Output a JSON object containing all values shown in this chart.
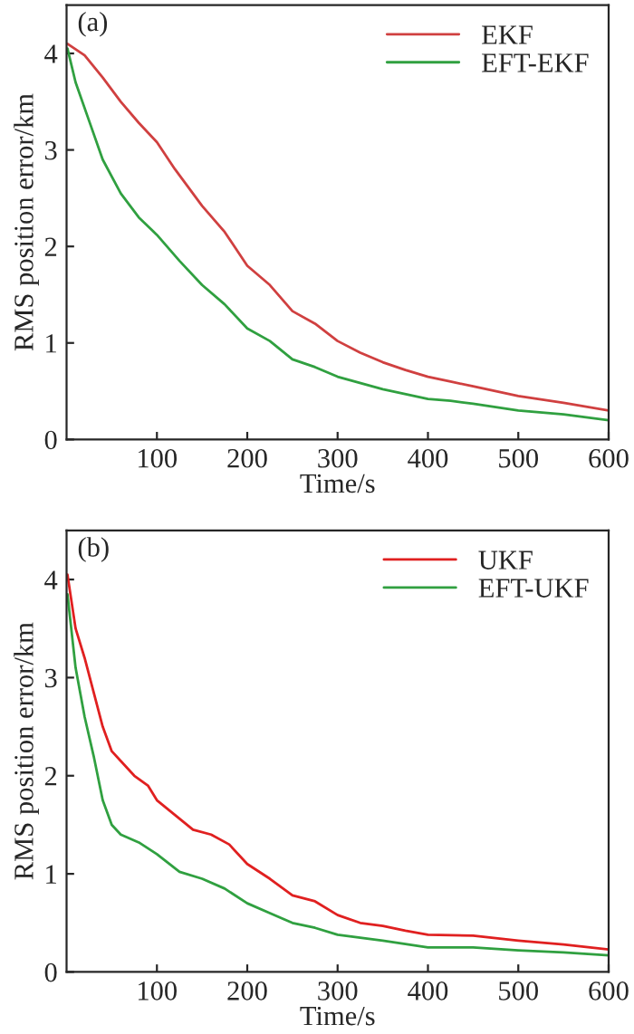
{
  "chart_data": [
    {
      "type": "line",
      "annotations": [
        "(a)"
      ],
      "xlabel": "Time/s",
      "ylabel": "RMS position error/km",
      "xlim": [
        0,
        600
      ],
      "ylim": [
        0,
        4.5
      ],
      "xticks": [
        100,
        200,
        300,
        400,
        500,
        600
      ],
      "yticks": [
        0,
        1,
        2,
        3,
        4
      ],
      "legend": "top right",
      "grid": false,
      "series": [
        {
          "name": "EKF",
          "color": "#d04040",
          "x": [
            1,
            20,
            40,
            60,
            80,
            100,
            120,
            150,
            175,
            200,
            225,
            250,
            275,
            300,
            325,
            350,
            375,
            400,
            425,
            450,
            500,
            550,
            600
          ],
          "values": [
            4.1,
            3.98,
            3.75,
            3.5,
            3.28,
            3.08,
            2.8,
            2.42,
            2.15,
            1.8,
            1.6,
            1.33,
            1.2,
            1.02,
            0.9,
            0.8,
            0.72,
            0.65,
            0.6,
            0.55,
            0.45,
            0.38,
            0.3
          ]
        },
        {
          "name": "EFT-EKF",
          "color": "#30a040",
          "x": [
            1,
            10,
            25,
            40,
            60,
            80,
            100,
            125,
            150,
            175,
            200,
            225,
            250,
            275,
            300,
            350,
            400,
            425,
            450,
            500,
            550,
            600
          ],
          "values": [
            4.05,
            3.7,
            3.3,
            2.9,
            2.55,
            2.3,
            2.12,
            1.85,
            1.6,
            1.4,
            1.15,
            1.02,
            0.83,
            0.75,
            0.65,
            0.52,
            0.42,
            0.4,
            0.37,
            0.3,
            0.26,
            0.2
          ]
        }
      ]
    },
    {
      "type": "line",
      "annotations": [
        "(b)"
      ],
      "xlabel": "Time/s",
      "ylabel": "RMS position error/km",
      "xlim": [
        0,
        600
      ],
      "ylim": [
        0,
        4.5
      ],
      "xticks": [
        100,
        200,
        300,
        400,
        500,
        600
      ],
      "yticks": [
        0,
        1,
        2,
        3,
        4
      ],
      "legend": "top right",
      "grid": false,
      "series": [
        {
          "name": "UKF",
          "color": "#e02020",
          "x": [
            1,
            10,
            20,
            30,
            40,
            50,
            60,
            75,
            90,
            100,
            120,
            140,
            160,
            180,
            200,
            225,
            250,
            275,
            300,
            325,
            350,
            375,
            400,
            450,
            500,
            550,
            600
          ],
          "values": [
            4.05,
            3.5,
            3.2,
            2.85,
            2.5,
            2.25,
            2.15,
            2.0,
            1.9,
            1.75,
            1.6,
            1.45,
            1.4,
            1.3,
            1.1,
            0.95,
            0.78,
            0.72,
            0.58,
            0.5,
            0.47,
            0.42,
            0.38,
            0.37,
            0.32,
            0.28,
            0.23
          ]
        },
        {
          "name": "EFT-UKF",
          "color": "#30a040",
          "x": [
            1,
            10,
            20,
            30,
            40,
            50,
            60,
            80,
            100,
            125,
            150,
            175,
            200,
            225,
            250,
            275,
            300,
            350,
            400,
            450,
            500,
            550,
            600
          ],
          "values": [
            3.85,
            3.1,
            2.6,
            2.2,
            1.75,
            1.5,
            1.4,
            1.32,
            1.2,
            1.02,
            0.95,
            0.85,
            0.7,
            0.6,
            0.5,
            0.45,
            0.38,
            0.32,
            0.25,
            0.25,
            0.22,
            0.2,
            0.17
          ]
        }
      ]
    }
  ]
}
